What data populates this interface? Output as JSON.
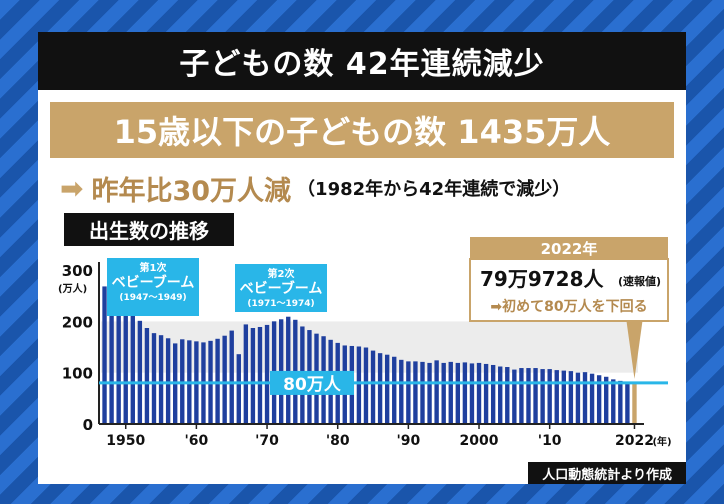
{
  "title": "子どもの数 42年連続減少",
  "headline": "15歳以下の子どもの数 1435万人",
  "sub": {
    "arrow": "➡",
    "main": "昨年比30万人減",
    "note": "（1982年から42年連続で減少）"
  },
  "section_label": "出生数の推移",
  "source": "人口動態統計より作成",
  "colors": {
    "bar": "#1f3f9e",
    "highlight_bar": "#c9a46a",
    "line_80": "#29b6e8",
    "callout": "#29b6e8",
    "gold": "#c9a46a"
  },
  "chart_data": {
    "type": "bar",
    "ylabel": "(万人)",
    "x_unit": "(年)",
    "ylim": [
      0,
      300
    ],
    "yticks": [
      0,
      100,
      200,
      300
    ],
    "xticks": [
      {
        "year": 1950,
        "label": "1950"
      },
      {
        "year": 1960,
        "label": "'60"
      },
      {
        "year": 1970,
        "label": "'70"
      },
      {
        "year": 1980,
        "label": "'80"
      },
      {
        "year": 1990,
        "label": "'90"
      },
      {
        "year": 2000,
        "label": "2000"
      },
      {
        "year": 2010,
        "label": "'10"
      },
      {
        "year": 2022,
        "label": "2022"
      }
    ],
    "years": [
      1947,
      1948,
      1949,
      1950,
      1951,
      1952,
      1953,
      1954,
      1955,
      1956,
      1957,
      1958,
      1959,
      1960,
      1961,
      1962,
      1963,
      1964,
      1965,
      1966,
      1967,
      1968,
      1969,
      1970,
      1971,
      1972,
      1973,
      1974,
      1975,
      1976,
      1977,
      1978,
      1979,
      1980,
      1981,
      1982,
      1983,
      1984,
      1985,
      1986,
      1987,
      1988,
      1989,
      1990,
      1991,
      1992,
      1993,
      1994,
      1995,
      1996,
      1997,
      1998,
      1999,
      2000,
      2001,
      2002,
      2003,
      2004,
      2005,
      2006,
      2007,
      2008,
      2009,
      2010,
      2011,
      2012,
      2013,
      2014,
      2015,
      2016,
      2017,
      2018,
      2019,
      2020,
      2021,
      2022
    ],
    "values": [
      268,
      268,
      270,
      234,
      214,
      201,
      187,
      177,
      173,
      167,
      157,
      165,
      163,
      161,
      159,
      162,
      166,
      172,
      182,
      136,
      194,
      187,
      189,
      193,
      200,
      204,
      209,
      203,
      190,
      183,
      176,
      171,
      164,
      158,
      153,
      152,
      151,
      149,
      143,
      138,
      135,
      131,
      125,
      122,
      122,
      121,
      119,
      124,
      119,
      121,
      119,
      120,
      118,
      119,
      117,
      115,
      112,
      111,
      106,
      109,
      109,
      109,
      107,
      107,
      105,
      104,
      103,
      100,
      101,
      98,
      95,
      92,
      87,
      84,
      81,
      80
    ],
    "highlight_index": 75,
    "threshold": {
      "value": 80,
      "label": "80万人"
    },
    "annotations": [
      {
        "id": "boom1",
        "line1": "第1次",
        "line2": "ベビーブーム",
        "line3": "(1947〜1949)"
      },
      {
        "id": "boom2",
        "line1": "第2次",
        "line2": "ベビーブーム",
        "line3": "(1971〜1974)"
      }
    ],
    "callout_2022": {
      "year_label": "2022年",
      "value_main": "79万9728人",
      "value_tag": "(速報値)",
      "note": "➡初めて80万人を下回る"
    }
  }
}
